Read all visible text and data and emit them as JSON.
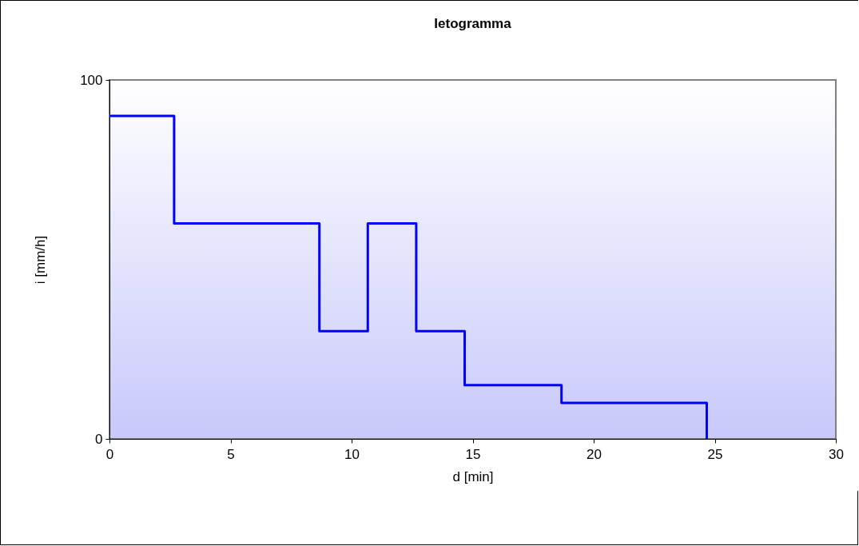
{
  "chart_data": {
    "type": "step",
    "title": "Ietogramma",
    "xlabel": "d [min]",
    "ylabel": "i [mm/h]",
    "x": [
      0,
      2.67,
      8.67,
      10.67,
      12.67,
      14.67,
      18.67,
      24.67
    ],
    "series": [
      {
        "color": "#0000ff",
        "values": [
          90,
          60,
          30,
          60,
          30,
          15,
          10,
          0
        ]
      }
    ],
    "xlim": [
      0,
      30
    ],
    "xticks": [
      0,
      5,
      10,
      15,
      20,
      25,
      30
    ],
    "ylim": [
      0,
      100
    ],
    "yticks": [
      0,
      100
    ],
    "grid": false
  }
}
